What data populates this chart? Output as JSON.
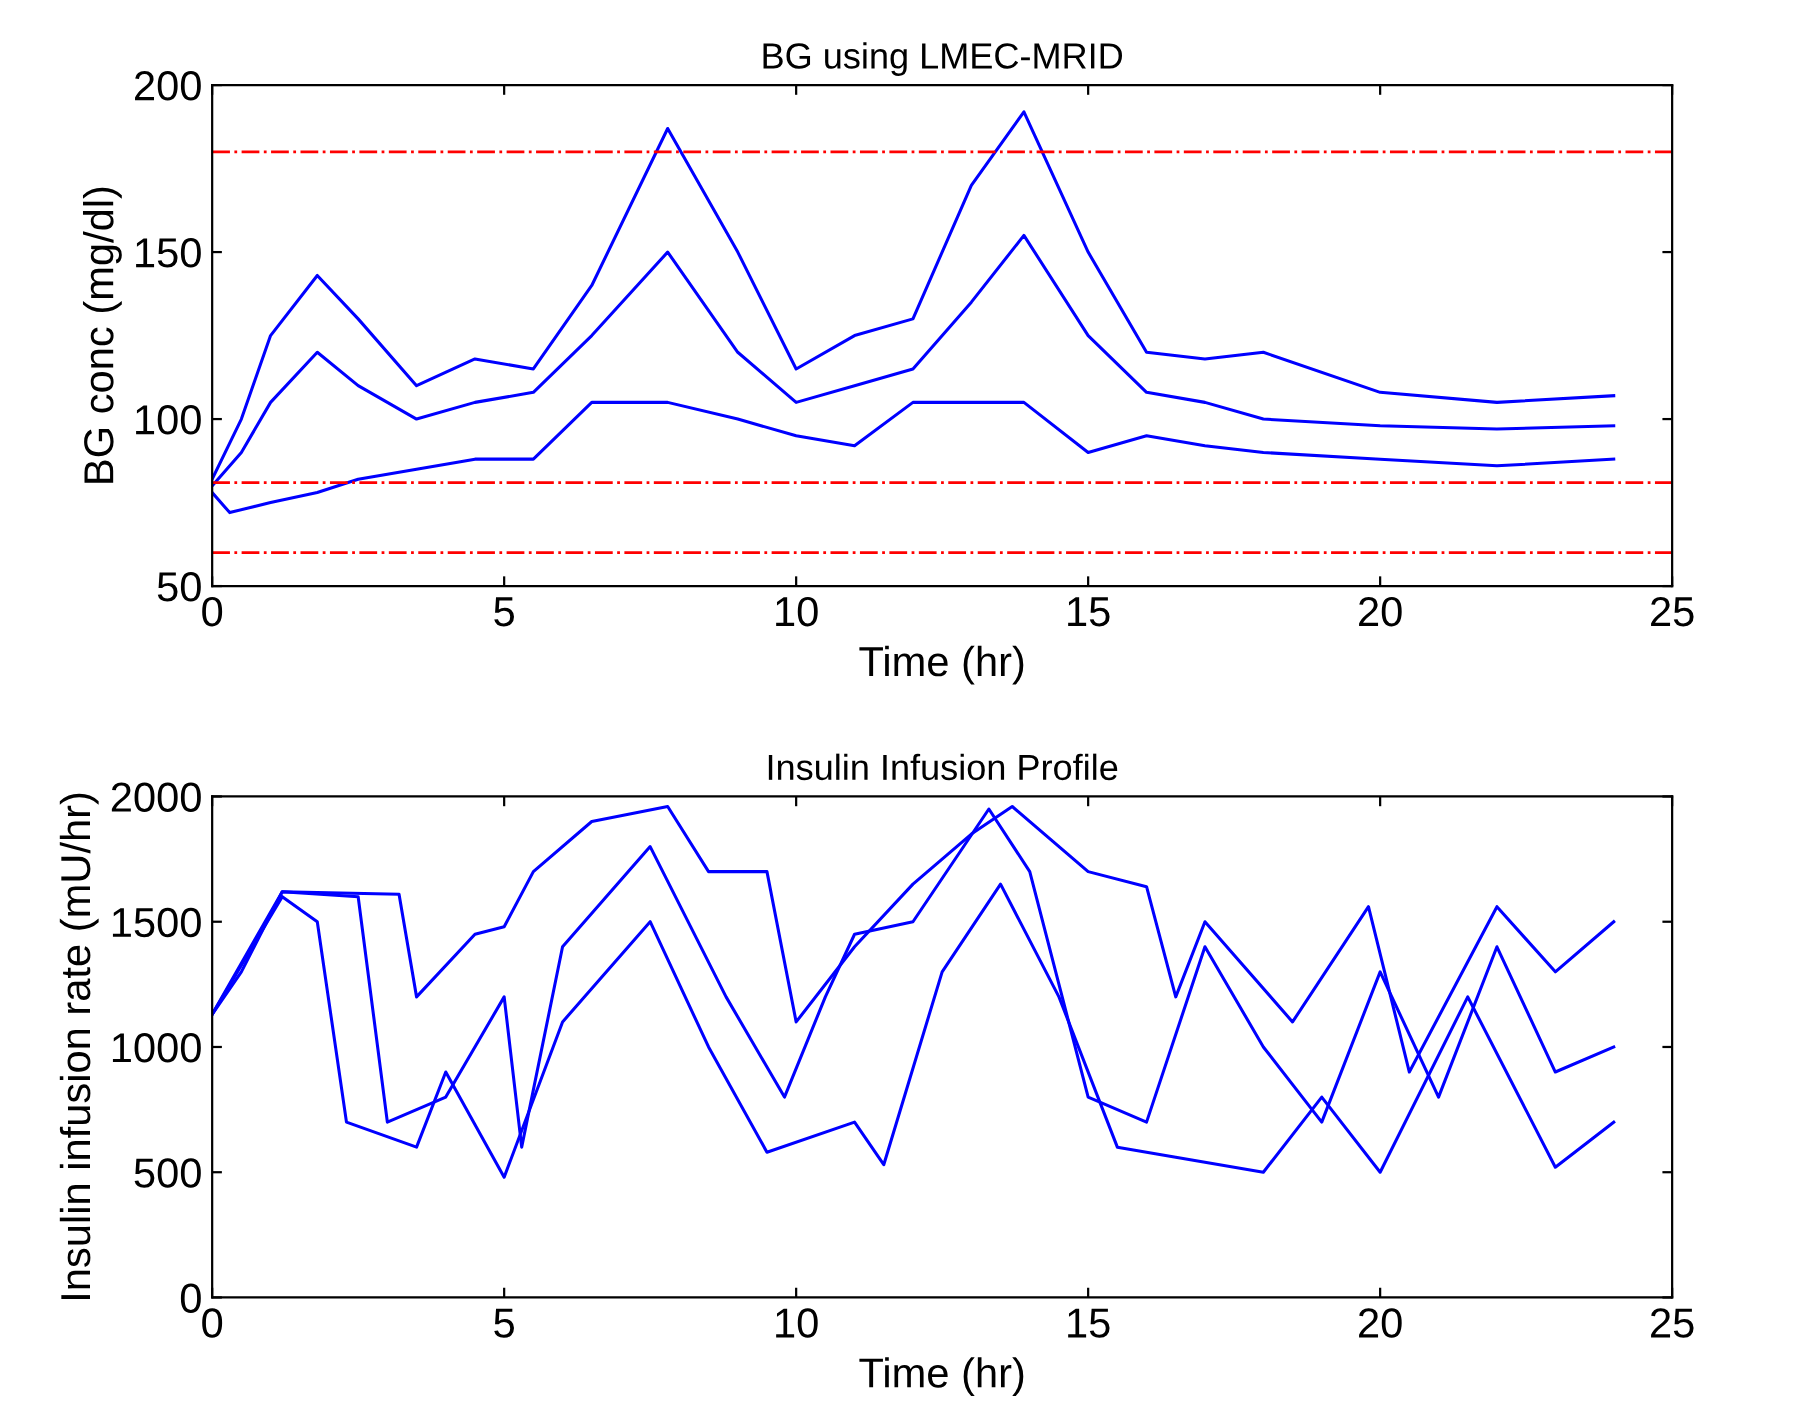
{
  "chart_data": [
    {
      "type": "line",
      "title": "BG using LMEC-MRID",
      "xlabel": "Time (hr)",
      "ylabel": "BG conc (mg/dl)",
      "xlim": [
        0,
        25
      ],
      "xticks": [
        0,
        5,
        10,
        15,
        20,
        25
      ],
      "ylim": [
        50,
        200
      ],
      "yticks": [
        50,
        100,
        150,
        200
      ],
      "grid": false,
      "legend": false,
      "series": [
        {
          "color": "#0000ff",
          "x": [
            0,
            0.5,
            1,
            1.8,
            2.5,
            3.5,
            4.5,
            5.5,
            6.5,
            7.8,
            9,
            10,
            11,
            12,
            13,
            13.9,
            15,
            16,
            17,
            18,
            20,
            22,
            24
          ],
          "values": [
            82,
            100,
            125,
            143,
            130,
            110,
            118,
            115,
            140,
            187,
            150,
            115,
            125,
            130,
            170,
            192,
            150,
            120,
            118,
            120,
            108,
            105,
            107
          ]
        },
        {
          "color": "#0000ff",
          "x": [
            0,
            0.5,
            1,
            1.8,
            2.5,
            3.5,
            4.5,
            5.5,
            6.5,
            7.8,
            9,
            10,
            11,
            12,
            13,
            13.9,
            15,
            16,
            17,
            18,
            20,
            22,
            24
          ],
          "values": [
            80,
            90,
            105,
            120,
            110,
            100,
            105,
            108,
            125,
            150,
            120,
            105,
            110,
            115,
            135,
            155,
            125,
            108,
            105,
            100,
            98,
            97,
            98
          ]
        },
        {
          "color": "#0000ff",
          "x": [
            0,
            0.3,
            1,
            1.8,
            2.5,
            3.5,
            4.5,
            5.5,
            6.5,
            7.8,
            9,
            10,
            11,
            12,
            13,
            13.9,
            15,
            16,
            17,
            18,
            20,
            22,
            24
          ],
          "values": [
            78,
            72,
            75,
            78,
            82,
            85,
            88,
            88,
            105,
            105,
            100,
            95,
            92,
            105,
            105,
            105,
            90,
            95,
            92,
            90,
            88,
            86,
            88
          ]
        }
      ],
      "ref_lines": [
        {
          "axis": "y",
          "value": 180,
          "color": "#ff0000",
          "line_style": "dashdot"
        },
        {
          "axis": "y",
          "value": 81,
          "color": "#ff0000",
          "line_style": "dashdot"
        },
        {
          "axis": "y",
          "value": 60,
          "color": "#ff0000",
          "line_style": "dashdot"
        }
      ]
    },
    {
      "type": "line",
      "title": "Insulin Infusion Profile",
      "xlabel": "Time (hr)",
      "ylabel": "Insulin infusion rate (mU/hr)",
      "xlim": [
        0,
        25
      ],
      "xticks": [
        0,
        5,
        10,
        15,
        20,
        25
      ],
      "ylim": [
        0,
        2000
      ],
      "yticks": [
        0,
        500,
        1000,
        1500,
        2000
      ],
      "grid": false,
      "legend": false,
      "series": [
        {
          "color": "#0000ff",
          "x": [
            0,
            0.5,
            1.2,
            3.2,
            3.5,
            4.5,
            5,
            5.5,
            6.5,
            7.8,
            8.5,
            9.5,
            10,
            11,
            12,
            13,
            13.7,
            15,
            16,
            16.5,
            17,
            18.5,
            19.8,
            20.5,
            22,
            23,
            24
          ],
          "values": [
            1130,
            1300,
            1620,
            1610,
            1200,
            1450,
            1480,
            1700,
            1900,
            1960,
            1700,
            1700,
            1100,
            1400,
            1650,
            1850,
            1960,
            1700,
            1640,
            1200,
            1500,
            1100,
            1560,
            900,
            1560,
            1300,
            1500
          ]
        },
        {
          "color": "#0000ff",
          "x": [
            0,
            1.2,
            1.8,
            2.3,
            3.5,
            4,
            5,
            6,
            7.5,
            8.5,
            9.5,
            11,
            11.5,
            12.5,
            13.5,
            14.5,
            15.5,
            16.5,
            18,
            19,
            20,
            21.5,
            23,
            24
          ],
          "values": [
            1130,
            1600,
            1500,
            700,
            600,
            900,
            480,
            1100,
            1500,
            1000,
            580,
            700,
            530,
            1300,
            1650,
            1200,
            600,
            560,
            500,
            800,
            500,
            1200,
            520,
            700
          ]
        },
        {
          "color": "#0000ff",
          "x": [
            0,
            1.2,
            2.5,
            3,
            4,
            5,
            5.3,
            6,
            7.5,
            8.8,
            9.8,
            10.5,
            11,
            12,
            13.3,
            14,
            15,
            16,
            17,
            18,
            19,
            20,
            21,
            22,
            23,
            24
          ],
          "values": [
            1130,
            1620,
            1600,
            700,
            800,
            1200,
            600,
            1400,
            1800,
            1200,
            800,
            1200,
            1450,
            1500,
            1950,
            1700,
            800,
            700,
            1400,
            1000,
            700,
            1300,
            800,
            1400,
            900,
            1000
          ]
        }
      ]
    }
  ]
}
